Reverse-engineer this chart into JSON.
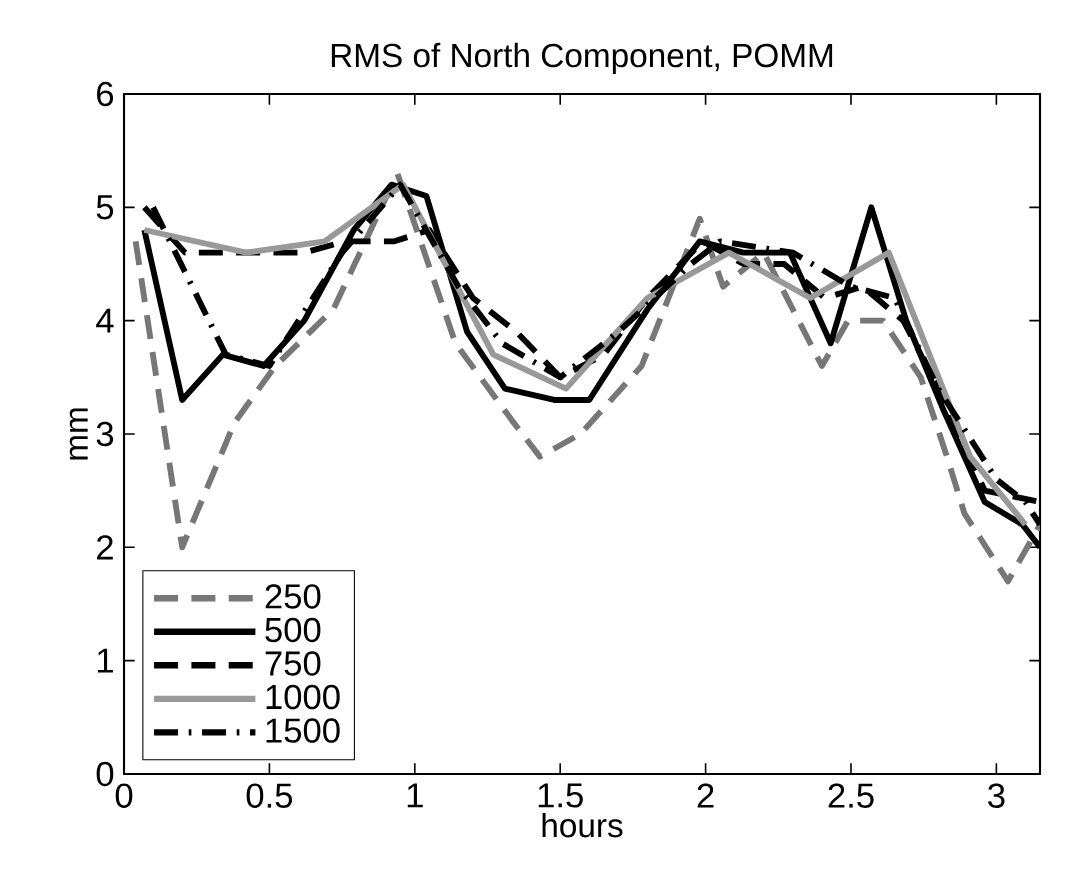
{
  "chart_data": {
    "type": "line",
    "title": "RMS of North Component, POMM",
    "xlabel": "hours",
    "ylabel": "mm",
    "xlim": [
      0,
      3.15
    ],
    "ylim": [
      0,
      6
    ],
    "xticks": [
      0,
      0.5,
      1,
      1.5,
      2,
      2.5,
      3
    ],
    "yticks": [
      0,
      1,
      2,
      3,
      4,
      5,
      6
    ],
    "legend": "bottom left",
    "grid": false,
    "marker": "none",
    "series": [
      {
        "name": "250",
        "color": "#777777",
        "line_style": "dashed",
        "x": [
          0.04,
          0.2,
          0.38,
          0.52,
          0.72,
          0.94,
          1.14,
          1.34,
          1.43,
          1.57,
          1.78,
          1.98,
          2.06,
          2.2,
          2.4,
          2.49,
          2.61,
          2.74,
          2.83,
          2.89,
          3.04,
          3.15
        ],
        "values": [
          4.7,
          2.0,
          3.1,
          3.6,
          4.1,
          5.3,
          3.8,
          3.1,
          2.8,
          3.0,
          3.6,
          4.9,
          4.3,
          4.6,
          3.6,
          4.0,
          4.0,
          3.5,
          2.8,
          2.3,
          1.7,
          2.2
        ]
      },
      {
        "name": "500",
        "color": "#000000",
        "line_style": "solid",
        "x": [
          0.07,
          0.2,
          0.34,
          0.48,
          0.62,
          0.79,
          0.92,
          1.04,
          1.18,
          1.31,
          1.48,
          1.6,
          1.8,
          1.98,
          2.13,
          2.29,
          2.43,
          2.57,
          2.69,
          2.82,
          2.96,
          3.09,
          3.15
        ],
        "values": [
          4.8,
          3.3,
          3.7,
          3.6,
          4.0,
          4.8,
          5.2,
          5.1,
          3.9,
          3.4,
          3.3,
          3.3,
          4.1,
          4.7,
          4.6,
          4.6,
          3.8,
          5.0,
          4.0,
          3.2,
          2.4,
          2.2,
          2.0
        ]
      },
      {
        "name": "750",
        "color": "#000000",
        "line_style": "dashed",
        "x": [
          0.07,
          0.21,
          0.34,
          0.48,
          0.62,
          0.76,
          0.93,
          1.05,
          1.2,
          1.35,
          1.5,
          1.65,
          1.8,
          1.99,
          2.13,
          2.27,
          2.41,
          2.54,
          2.68,
          2.82,
          2.96,
          3.15
        ],
        "values": [
          5.0,
          4.6,
          4.6,
          4.6,
          4.6,
          4.7,
          4.7,
          4.8,
          4.2,
          3.9,
          3.5,
          3.7,
          4.2,
          4.7,
          4.5,
          4.5,
          4.2,
          4.3,
          4.0,
          3.3,
          2.5,
          2.4
        ]
      },
      {
        "name": "1000",
        "color": "#999999",
        "line_style": "solid",
        "x": [
          0.07,
          0.42,
          0.69,
          0.96,
          1.27,
          1.52,
          1.8,
          2.08,
          2.36,
          2.63,
          2.91,
          3.1
        ],
        "values": [
          4.8,
          4.6,
          4.7,
          5.2,
          3.7,
          3.4,
          4.2,
          4.6,
          4.2,
          4.6,
          2.8,
          2.2
        ]
      },
      {
        "name": "1500",
        "color": "#000000",
        "line_style": "dashdot",
        "x": [
          0.1,
          0.35,
          0.5,
          0.75,
          0.95,
          1.15,
          1.3,
          1.5,
          1.7,
          1.95,
          2.05,
          2.3,
          2.5,
          2.65,
          2.8,
          3.0,
          3.1,
          3.15
        ],
        "values": [
          5.0,
          3.7,
          3.6,
          4.6,
          5.2,
          4.3,
          3.8,
          3.5,
          3.9,
          4.5,
          4.7,
          4.6,
          4.3,
          4.2,
          3.4,
          2.6,
          2.4,
          2.2
        ]
      }
    ]
  }
}
